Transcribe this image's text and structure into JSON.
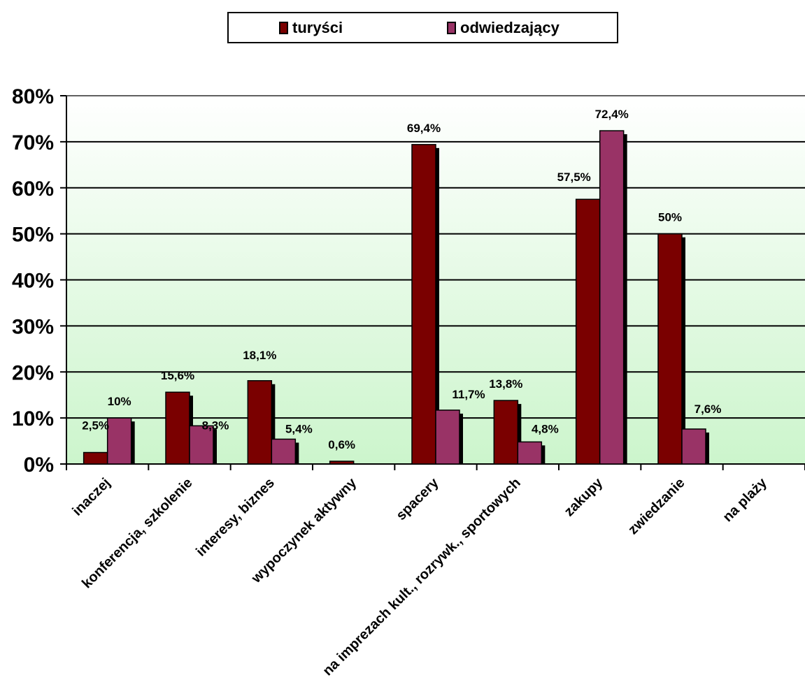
{
  "chart_data": {
    "type": "bar",
    "categories": [
      "inaczej",
      "konferencja, szkolenie",
      "interesy, biznes",
      "wypoczynek aktywny",
      "spacery",
      "na imprezach kult., rozrywk., sportowych",
      "zakupy",
      "zwiedzanie",
      "na plaży"
    ],
    "series": [
      {
        "name": "turyści",
        "color": "#7a0000",
        "values": [
          2.5,
          15.6,
          18.1,
          0.6,
          69.4,
          13.8,
          57.5,
          50,
          null
        ],
        "labels": [
          "2,5%",
          "15,6%",
          "18,1%",
          "0,6%",
          "69,4%",
          "13,8%",
          "57,5%",
          "50%",
          ""
        ]
      },
      {
        "name": "odwiedzający",
        "color": "#993366",
        "values": [
          10,
          8.3,
          5.4,
          null,
          11.7,
          4.8,
          72.4,
          7.6,
          null
        ],
        "labels": [
          "10%",
          "8,3%",
          "5,4%",
          "",
          "11,7%",
          "4,8%",
          "72,4%",
          "7,6%",
          ""
        ]
      }
    ],
    "ylim": [
      0,
      80
    ],
    "yticks": [
      "0%",
      "10%",
      "20%",
      "30%",
      "40%",
      "50%",
      "60%",
      "70%",
      "80%"
    ],
    "legend_position": "top",
    "grid": true
  }
}
